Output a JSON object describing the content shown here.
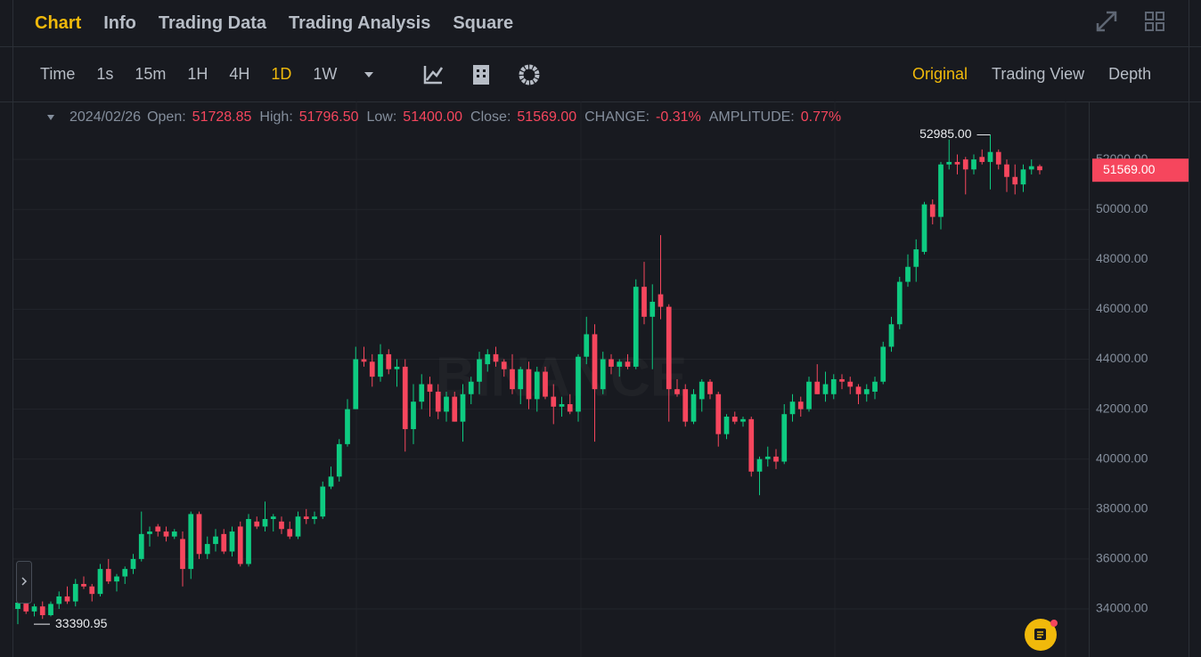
{
  "tabs": [
    "Chart",
    "Info",
    "Trading Data",
    "Trading Analysis",
    "Square"
  ],
  "active_tab": 0,
  "intervals": [
    "Time",
    "1s",
    "15m",
    "1H",
    "4H",
    "1D",
    "1W"
  ],
  "active_interval": 5,
  "views": [
    "Original",
    "Trading View",
    "Depth"
  ],
  "active_view": 0,
  "chart_data": {
    "type": "candlestick",
    "date": "2024/02/26",
    "ohlc_info": [
      {
        "name": "Open:",
        "value": "51728.85"
      },
      {
        "name": "High:",
        "value": "51796.50"
      },
      {
        "name": "Low:",
        "value": "51400.00"
      },
      {
        "name": "Close:",
        "value": "51569.00"
      },
      {
        "name": "CHANGE:",
        "value": "-0.31%"
      },
      {
        "name": "AMPLITUDE:",
        "value": "0.77%"
      }
    ],
    "up_color": "#0ecb81",
    "down_color": "#f6465d",
    "grid": true,
    "watermark": "BINANCE",
    "ylim": [
      32075,
      54321
    ],
    "yticks": [
      {
        "value": 34000,
        "label": "34000.00"
      },
      {
        "value": 36000,
        "label": "36000.00"
      },
      {
        "value": 38000,
        "label": "38000.00"
      },
      {
        "value": 40000,
        "label": "40000.00"
      },
      {
        "value": 42000,
        "label": "42000.00"
      },
      {
        "value": 44000,
        "label": "44000.00"
      },
      {
        "value": 46000,
        "label": "46000.00"
      },
      {
        "value": 48000,
        "label": "48000.00"
      },
      {
        "value": 50000,
        "label": "50000.00"
      },
      {
        "value": 52000,
        "label": "52000.00"
      }
    ],
    "high_label": "52985.00",
    "low_label": "33390.95",
    "last_price": {
      "value": 51569,
      "label": "51569.00"
    },
    "candles": [
      {
        "o": 34000,
        "h": 34400,
        "l": 33390.95,
        "c": 34250
      },
      {
        "o": 34250,
        "h": 34400,
        "l": 33800,
        "c": 33900
      },
      {
        "o": 33900,
        "h": 34200,
        "l": 33700,
        "c": 34100
      },
      {
        "o": 34100,
        "h": 34300,
        "l": 33600,
        "c": 33750
      },
      {
        "o": 33750,
        "h": 34300,
        "l": 33700,
        "c": 34200
      },
      {
        "o": 34200,
        "h": 34700,
        "l": 34000,
        "c": 34500
      },
      {
        "o": 34500,
        "h": 34900,
        "l": 34200,
        "c": 34300
      },
      {
        "o": 34300,
        "h": 35200,
        "l": 34100,
        "c": 35000
      },
      {
        "o": 35000,
        "h": 35300,
        "l": 34800,
        "c": 34900
      },
      {
        "o": 34900,
        "h": 35000,
        "l": 34300,
        "c": 34600
      },
      {
        "o": 34600,
        "h": 35800,
        "l": 34500,
        "c": 35600
      },
      {
        "o": 35600,
        "h": 36000,
        "l": 35000,
        "c": 35100
      },
      {
        "o": 35100,
        "h": 35400,
        "l": 34700,
        "c": 35300
      },
      {
        "o": 35300,
        "h": 35700,
        "l": 35000,
        "c": 35600
      },
      {
        "o": 35600,
        "h": 36200,
        "l": 35400,
        "c": 36000
      },
      {
        "o": 36000,
        "h": 37900,
        "l": 35900,
        "c": 37000
      },
      {
        "o": 37000,
        "h": 37300,
        "l": 36500,
        "c": 37100
      },
      {
        "o": 37300,
        "h": 37400,
        "l": 36900,
        "c": 37100
      },
      {
        "o": 37100,
        "h": 37300,
        "l": 36700,
        "c": 36900
      },
      {
        "o": 36900,
        "h": 37200,
        "l": 36800,
        "c": 37100
      },
      {
        "o": 36800,
        "h": 37100,
        "l": 34900,
        "c": 35600
      },
      {
        "o": 35600,
        "h": 37900,
        "l": 35200,
        "c": 37800
      },
      {
        "o": 37800,
        "h": 37900,
        "l": 36000,
        "c": 36200
      },
      {
        "o": 36200,
        "h": 36900,
        "l": 36000,
        "c": 36600
      },
      {
        "o": 36600,
        "h": 37200,
        "l": 36300,
        "c": 36900
      },
      {
        "o": 37000,
        "h": 37200,
        "l": 36200,
        "c": 36300
      },
      {
        "o": 36300,
        "h": 37300,
        "l": 36100,
        "c": 37100
      },
      {
        "o": 37300,
        "h": 37500,
        "l": 35700,
        "c": 35800
      },
      {
        "o": 35800,
        "h": 37800,
        "l": 35700,
        "c": 37600
      },
      {
        "o": 37500,
        "h": 37700,
        "l": 37200,
        "c": 37300
      },
      {
        "o": 37300,
        "h": 38300,
        "l": 37100,
        "c": 37600
      },
      {
        "o": 37600,
        "h": 37800,
        "l": 37100,
        "c": 37700
      },
      {
        "o": 37500,
        "h": 37700,
        "l": 37000,
        "c": 37200
      },
      {
        "o": 37200,
        "h": 37500,
        "l": 36800,
        "c": 36900
      },
      {
        "o": 36900,
        "h": 37900,
        "l": 36800,
        "c": 37700
      },
      {
        "o": 37700,
        "h": 38000,
        "l": 37400,
        "c": 37600
      },
      {
        "o": 37600,
        "h": 37900,
        "l": 37400,
        "c": 37700
      },
      {
        "o": 37700,
        "h": 39100,
        "l": 37600,
        "c": 38900
      },
      {
        "o": 38900,
        "h": 39700,
        "l": 38800,
        "c": 39300
      },
      {
        "o": 39300,
        "h": 40800,
        "l": 39100,
        "c": 40600
      },
      {
        "o": 40600,
        "h": 42400,
        "l": 40500,
        "c": 42000
      },
      {
        "o": 42000,
        "h": 44500,
        "l": 42000,
        "c": 44000
      },
      {
        "o": 44000,
        "h": 44500,
        "l": 43700,
        "c": 43900
      },
      {
        "o": 43900,
        "h": 44200,
        "l": 42900,
        "c": 43300
      },
      {
        "o": 43300,
        "h": 44600,
        "l": 43100,
        "c": 44200
      },
      {
        "o": 44200,
        "h": 44400,
        "l": 43400,
        "c": 43600
      },
      {
        "o": 43600,
        "h": 44000,
        "l": 42900,
        "c": 43700
      },
      {
        "o": 43700,
        "h": 44000,
        "l": 40300,
        "c": 41200
      },
      {
        "o": 41200,
        "h": 43000,
        "l": 40600,
        "c": 42300
      },
      {
        "o": 42300,
        "h": 43400,
        "l": 42000,
        "c": 43000
      },
      {
        "o": 43000,
        "h": 43300,
        "l": 41700,
        "c": 42700
      },
      {
        "o": 42700,
        "h": 43000,
        "l": 41600,
        "c": 41900
      },
      {
        "o": 41900,
        "h": 42700,
        "l": 41500,
        "c": 42500
      },
      {
        "o": 42500,
        "h": 42700,
        "l": 41500,
        "c": 41500
      },
      {
        "o": 41500,
        "h": 43000,
        "l": 40700,
        "c": 42600
      },
      {
        "o": 42600,
        "h": 43300,
        "l": 42200,
        "c": 43100
      },
      {
        "o": 43100,
        "h": 44300,
        "l": 42600,
        "c": 44000
      },
      {
        "o": 43800,
        "h": 44400,
        "l": 43500,
        "c": 44200
      },
      {
        "o": 44200,
        "h": 44500,
        "l": 43700,
        "c": 43900
      },
      {
        "o": 43900,
        "h": 44000,
        "l": 43300,
        "c": 43600
      },
      {
        "o": 43600,
        "h": 44200,
        "l": 42600,
        "c": 42800
      },
      {
        "o": 42800,
        "h": 43700,
        "l": 42200,
        "c": 43600
      },
      {
        "o": 43600,
        "h": 43900,
        "l": 42000,
        "c": 42400
      },
      {
        "o": 42400,
        "h": 43700,
        "l": 41900,
        "c": 43500
      },
      {
        "o": 43500,
        "h": 43700,
        "l": 42400,
        "c": 42500
      },
      {
        "o": 42500,
        "h": 43000,
        "l": 41400,
        "c": 42100
      },
      {
        "o": 42100,
        "h": 42500,
        "l": 41700,
        "c": 42200
      },
      {
        "o": 42200,
        "h": 42600,
        "l": 41800,
        "c": 41900
      },
      {
        "o": 41900,
        "h": 44200,
        "l": 41500,
        "c": 44100
      },
      {
        "o": 44100,
        "h": 45700,
        "l": 43800,
        "c": 45000
      },
      {
        "o": 45000,
        "h": 45400,
        "l": 40700,
        "c": 42800
      },
      {
        "o": 42800,
        "h": 44300,
        "l": 42600,
        "c": 44000
      },
      {
        "o": 44000,
        "h": 44200,
        "l": 43400,
        "c": 43700
      },
      {
        "o": 43700,
        "h": 44000,
        "l": 43300,
        "c": 43900
      },
      {
        "o": 43900,
        "h": 44200,
        "l": 43600,
        "c": 43700
      },
      {
        "o": 43700,
        "h": 47200,
        "l": 43600,
        "c": 46900
      },
      {
        "o": 46900,
        "h": 47900,
        "l": 45400,
        "c": 45700
      },
      {
        "o": 45700,
        "h": 47000,
        "l": 43600,
        "c": 46300
      },
      {
        "o": 46600,
        "h": 48969,
        "l": 45600,
        "c": 46100
      },
      {
        "o": 46100,
        "h": 46200,
        "l": 41500,
        "c": 42800
      },
      {
        "o": 42800,
        "h": 43200,
        "l": 42500,
        "c": 42600
      },
      {
        "o": 42800,
        "h": 43000,
        "l": 41300,
        "c": 41500
      },
      {
        "o": 41500,
        "h": 42800,
        "l": 41400,
        "c": 42600
      },
      {
        "o": 42400,
        "h": 43200,
        "l": 41900,
        "c": 43100
      },
      {
        "o": 43100,
        "h": 43200,
        "l": 42400,
        "c": 42600
      },
      {
        "o": 42600,
        "h": 42700,
        "l": 40500,
        "c": 41000
      },
      {
        "o": 41000,
        "h": 41800,
        "l": 40800,
        "c": 41700
      },
      {
        "o": 41700,
        "h": 41900,
        "l": 41400,
        "c": 41500
      },
      {
        "o": 41500,
        "h": 41700,
        "l": 41300,
        "c": 41600
      },
      {
        "o": 41600,
        "h": 41700,
        "l": 39300,
        "c": 39500
      },
      {
        "o": 39500,
        "h": 40100,
        "l": 38555,
        "c": 40000
      },
      {
        "o": 40000,
        "h": 40500,
        "l": 39700,
        "c": 40100
      },
      {
        "o": 40100,
        "h": 40400,
        "l": 39600,
        "c": 39900
      },
      {
        "o": 39900,
        "h": 42200,
        "l": 39800,
        "c": 41800
      },
      {
        "o": 41800,
        "h": 42600,
        "l": 41500,
        "c": 42300
      },
      {
        "o": 42300,
        "h": 42500,
        "l": 41700,
        "c": 42000
      },
      {
        "o": 42000,
        "h": 43300,
        "l": 41900,
        "c": 43100
      },
      {
        "o": 43100,
        "h": 43800,
        "l": 42600,
        "c": 42600
      },
      {
        "o": 42600,
        "h": 43500,
        "l": 42300,
        "c": 43000
      },
      {
        "o": 42600,
        "h": 43400,
        "l": 42400,
        "c": 43200
      },
      {
        "o": 43200,
        "h": 43400,
        "l": 42800,
        "c": 43100
      },
      {
        "o": 43100,
        "h": 43300,
        "l": 42600,
        "c": 42900
      },
      {
        "o": 42900,
        "h": 43000,
        "l": 42200,
        "c": 42600
      },
      {
        "o": 42600,
        "h": 43000,
        "l": 42300,
        "c": 42800
      },
      {
        "o": 42700,
        "h": 43300,
        "l": 42400,
        "c": 43100
      },
      {
        "o": 43100,
        "h": 44700,
        "l": 43000,
        "c": 44500
      },
      {
        "o": 44500,
        "h": 45700,
        "l": 44300,
        "c": 45400
      },
      {
        "o": 45400,
        "h": 47300,
        "l": 45200,
        "c": 47100
      },
      {
        "o": 47100,
        "h": 48200,
        "l": 46900,
        "c": 47700
      },
      {
        "o": 47700,
        "h": 48800,
        "l": 47100,
        "c": 48400
      },
      {
        "o": 48300,
        "h": 50300,
        "l": 48200,
        "c": 50200
      },
      {
        "o": 50200,
        "h": 50400,
        "l": 49400,
        "c": 49700
      },
      {
        "o": 49700,
        "h": 51900,
        "l": 49200,
        "c": 51800
      },
      {
        "o": 51800,
        "h": 52800,
        "l": 51600,
        "c": 51900
      },
      {
        "o": 51900,
        "h": 52200,
        "l": 51400,
        "c": 51800
      },
      {
        "o": 52000,
        "h": 52100,
        "l": 50600,
        "c": 51600
      },
      {
        "o": 51600,
        "h": 52200,
        "l": 51400,
        "c": 52000
      },
      {
        "o": 52100,
        "h": 52400,
        "l": 51800,
        "c": 51900
      },
      {
        "o": 51900,
        "h": 52985,
        "l": 50800,
        "c": 52300
      },
      {
        "o": 52300,
        "h": 52400,
        "l": 51600,
        "c": 51800
      },
      {
        "o": 51800,
        "h": 52000,
        "l": 50700,
        "c": 51300
      },
      {
        "o": 51300,
        "h": 51800,
        "l": 50600,
        "c": 51000
      },
      {
        "o": 51000,
        "h": 51800,
        "l": 50700,
        "c": 51600
      },
      {
        "o": 51600,
        "h": 52000,
        "l": 51400,
        "c": 51728.85
      },
      {
        "o": 51728.85,
        "h": 51796.5,
        "l": 51400,
        "c": 51569
      }
    ]
  }
}
